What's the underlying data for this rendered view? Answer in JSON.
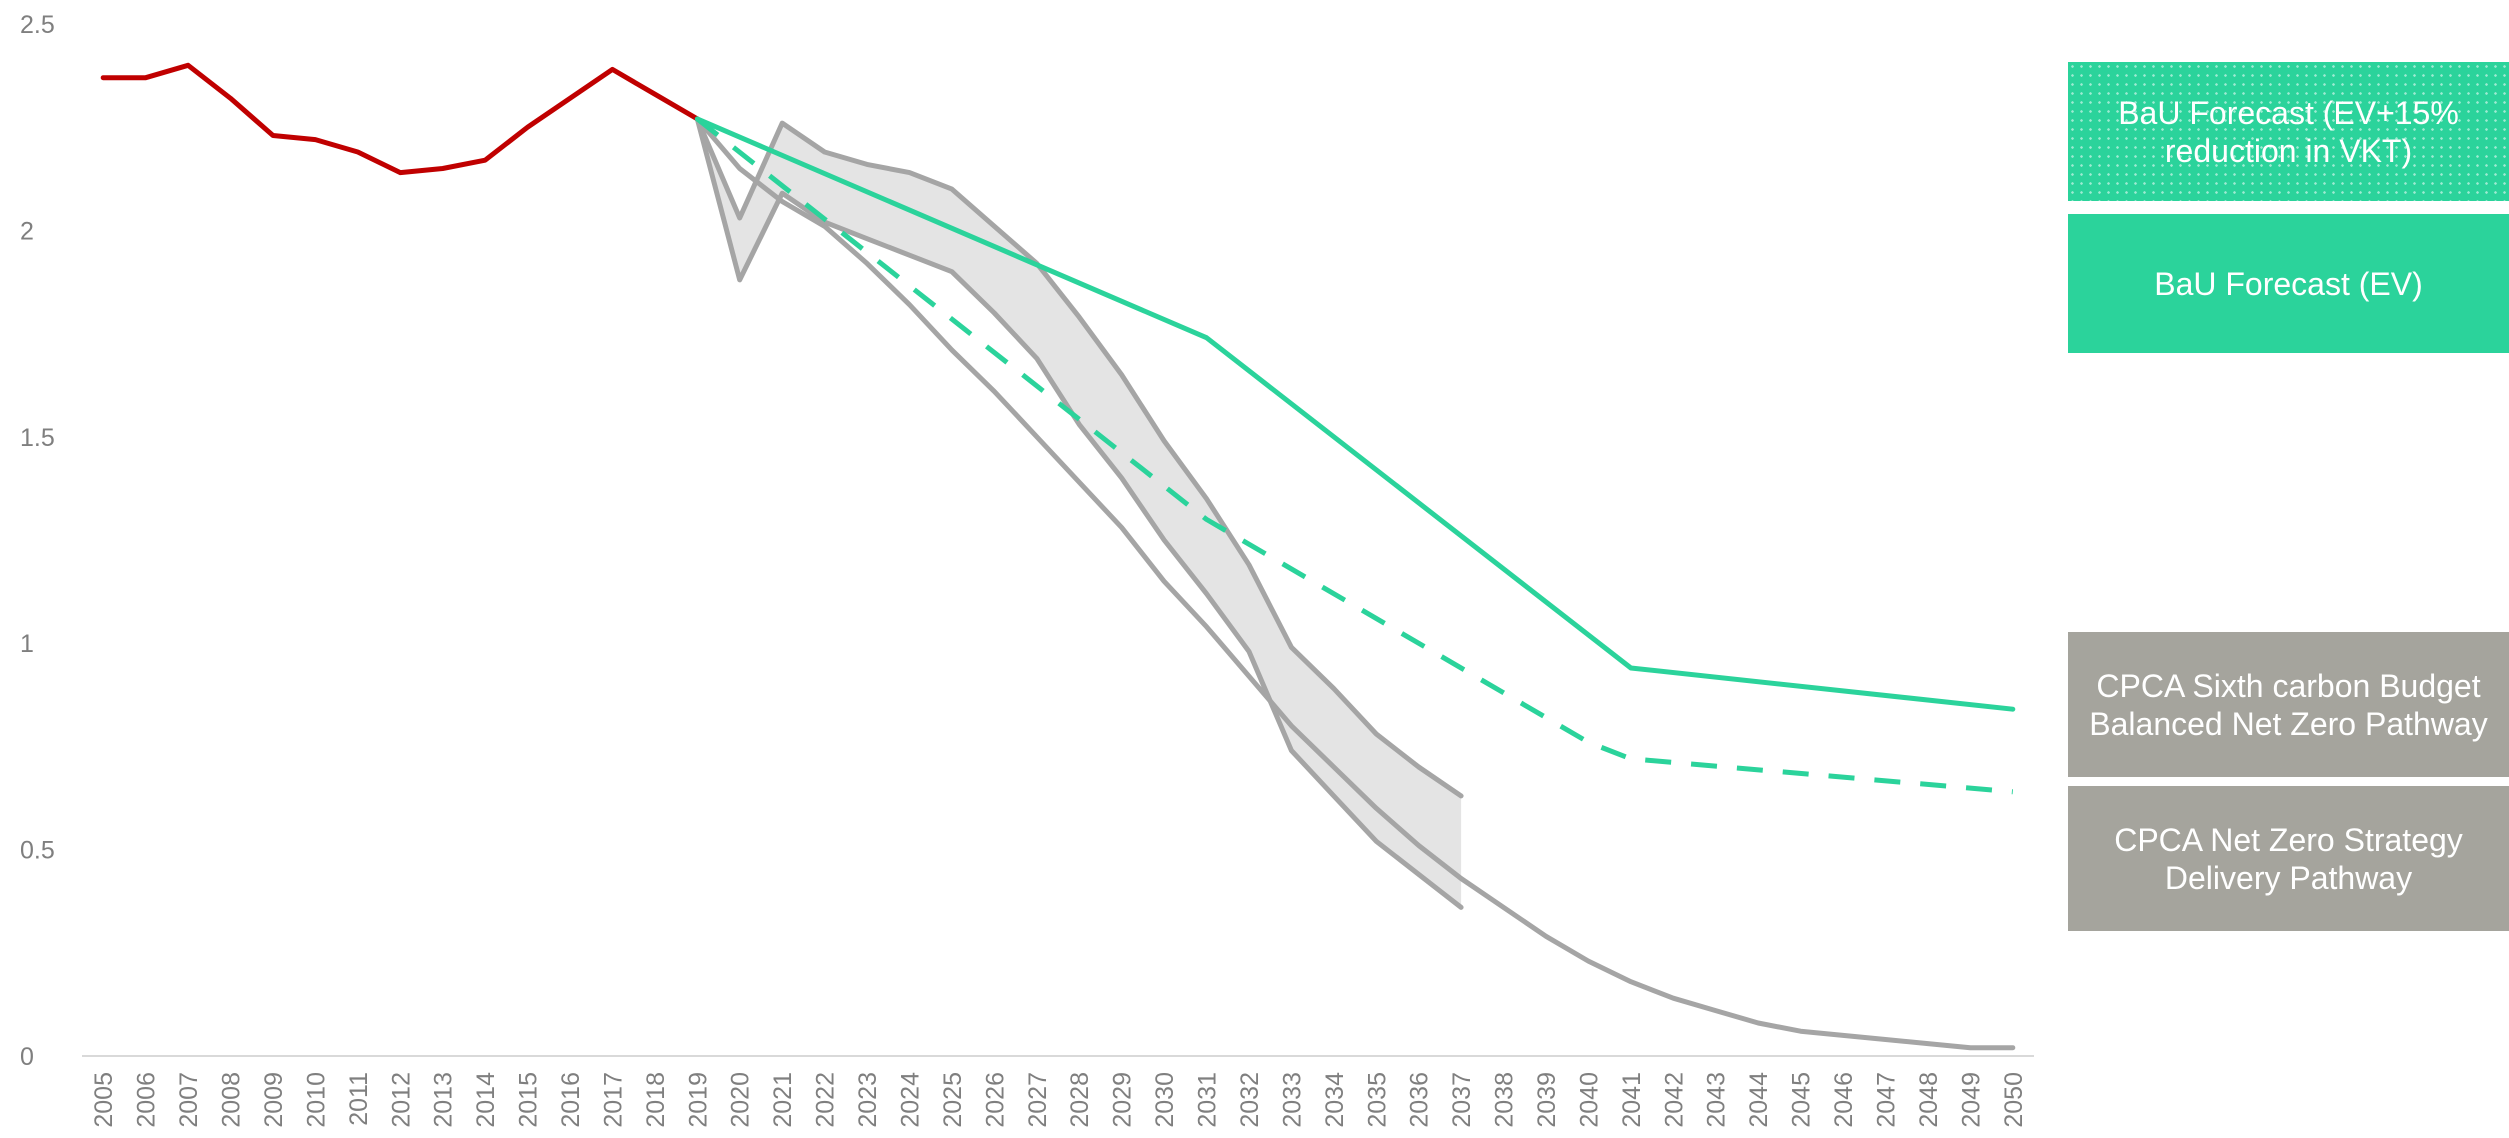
{
  "chart_data": {
    "type": "line",
    "title": "",
    "xlabel": "",
    "ylabel": "",
    "x": [
      2005,
      2006,
      2007,
      2008,
      2009,
      2010,
      2011,
      2012,
      2013,
      2014,
      2015,
      2016,
      2017,
      2018,
      2019,
      2020,
      2021,
      2022,
      2023,
      2024,
      2025,
      2026,
      2027,
      2028,
      2029,
      2030,
      2031,
      2032,
      2033,
      2034,
      2035,
      2036,
      2037,
      2038,
      2039,
      2040,
      2041,
      2042,
      2043,
      2044,
      2045,
      2046,
      2047,
      2048,
      2049,
      2050
    ],
    "ylim": [
      0,
      2.5
    ],
    "yticks": [
      "0",
      "0.5",
      "1",
      "1.5",
      "2",
      "2.5"
    ],
    "xticks": [
      "2005",
      "2006",
      "2007",
      "2008",
      "2009",
      "2010",
      "2011",
      "2012",
      "2013",
      "2014",
      "2015",
      "2016",
      "2017",
      "2018",
      "2019",
      "2020",
      "2021",
      "2022",
      "2023",
      "2024",
      "2025",
      "2026",
      "2027",
      "2028",
      "2029",
      "2030",
      "2031",
      "2032",
      "2033",
      "2034",
      "2035",
      "2036",
      "2037",
      "2038",
      "2039",
      "2040",
      "2041",
      "2042",
      "2043",
      "2044",
      "2045",
      "2046",
      "2047",
      "2048",
      "2049",
      "2050"
    ],
    "grid": false,
    "legend_position": "right",
    "series": [
      {
        "key": "historic",
        "color": "#c00000",
        "style": "solid",
        "x": [
          2005,
          2006,
          2007,
          2008,
          2009,
          2010,
          2011,
          2012,
          2013,
          2014,
          2015,
          2016,
          2017,
          2018,
          2019
        ],
        "y": [
          2.37,
          2.37,
          2.4,
          2.32,
          2.23,
          2.22,
          2.19,
          2.14,
          2.15,
          2.17,
          2.25,
          2.32,
          2.39,
          2.33,
          2.27
        ]
      },
      {
        "key": "bau_ev",
        "name": "BaU Forecast (EV)",
        "color": "#2bd39b",
        "style": "solid",
        "x": [
          2019,
          2031,
          2041,
          2050
        ],
        "y": [
          2.27,
          1.74,
          0.94,
          0.84
        ]
      },
      {
        "key": "bau_ev_vkt",
        "name": "BaU Forecast (EV+15% reduction in VKT)",
        "color": "#2bd39b",
        "style": "dashed",
        "x": [
          2019,
          2031,
          2040,
          2041,
          2050
        ],
        "y": [
          2.27,
          1.3,
          0.76,
          0.72,
          0.64
        ]
      },
      {
        "key": "cpca_sixth_upper",
        "name": "CPCA Sixth carbon Budget Balanced Net Zero Pathway",
        "color": "#a5a5a5",
        "style": "solid",
        "x": [
          2019,
          2020,
          2021,
          2022,
          2023,
          2024,
          2025,
          2026,
          2027,
          2028,
          2029,
          2030,
          2031,
          2032,
          2033,
          2034,
          2035,
          2036,
          2037
        ],
        "y": [
          2.27,
          2.03,
          2.26,
          2.19,
          2.16,
          2.14,
          2.1,
          2.01,
          1.92,
          1.79,
          1.65,
          1.49,
          1.35,
          1.19,
          0.99,
          0.89,
          0.78,
          0.7,
          0.63
        ]
      },
      {
        "key": "cpca_sixth_lower",
        "color": "#a5a5a5",
        "style": "solid",
        "x": [
          2019,
          2020,
          2021,
          2022,
          2023,
          2024,
          2025,
          2026,
          2027,
          2028,
          2029,
          2030,
          2031,
          2032,
          2033,
          2034,
          2035,
          2036,
          2037
        ],
        "y": [
          2.27,
          1.88,
          2.09,
          2.02,
          1.98,
          1.94,
          1.9,
          1.8,
          1.69,
          1.53,
          1.4,
          1.25,
          1.12,
          0.98,
          0.74,
          0.63,
          0.52,
          0.44,
          0.36
        ]
      },
      {
        "key": "cpca_nzs",
        "name": "CPCA Net Zero Strategy Delivery Pathway",
        "color": "#a5a5a5",
        "style": "solid",
        "x": [
          2019,
          2020,
          2021,
          2022,
          2023,
          2024,
          2025,
          2026,
          2027,
          2028,
          2029,
          2030,
          2031,
          2032,
          2033,
          2034,
          2035,
          2036,
          2037,
          2038,
          2039,
          2040,
          2041,
          2042,
          2043,
          2044,
          2045,
          2046,
          2047,
          2048,
          2049,
          2050
        ],
        "y": [
          2.27,
          2.15,
          2.07,
          2.01,
          1.92,
          1.82,
          1.71,
          1.61,
          1.5,
          1.39,
          1.28,
          1.15,
          1.04,
          0.92,
          0.8,
          0.7,
          0.6,
          0.51,
          0.43,
          0.36,
          0.29,
          0.23,
          0.18,
          0.14,
          0.11,
          0.08,
          0.06,
          0.05,
          0.04,
          0.03,
          0.02,
          0.02
        ]
      }
    ]
  },
  "legend": {
    "bau_ev_vkt": "BaU Forecast (EV+15% reduction in VKT)",
    "bau_ev": "BaU Forecast (EV)",
    "cpca_sixth": "CPCA Sixth carbon Budget Balanced Net Zero Pathway",
    "cpca_nzs": "CPCA Net Zero Strategy Delivery Pathway"
  }
}
